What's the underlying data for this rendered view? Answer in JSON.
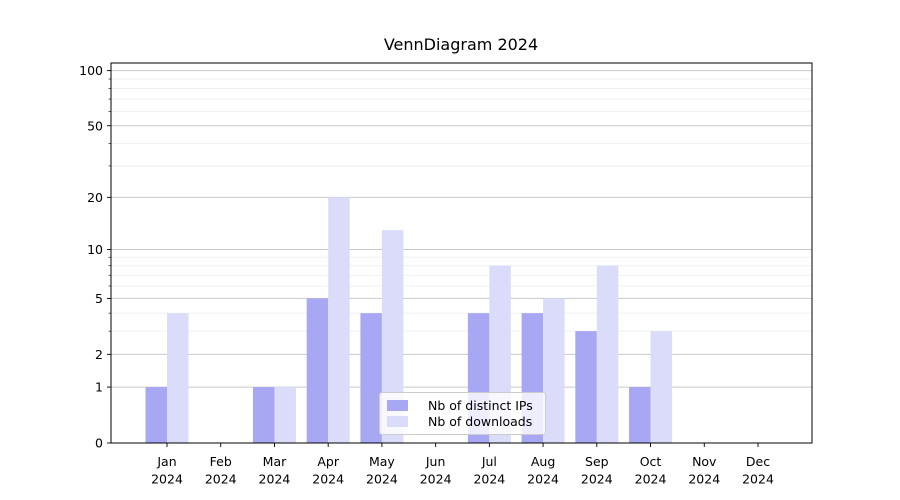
{
  "chart_data": {
    "type": "bar",
    "title": "VennDiagram 2024",
    "year": "2024",
    "categories": [
      "Jan",
      "Feb",
      "Mar",
      "Apr",
      "May",
      "Jun",
      "Jul",
      "Aug",
      "Sep",
      "Oct",
      "Nov",
      "Dec"
    ],
    "series": [
      {
        "name": "Nb of distinct IPs",
        "color": "#a7a7f3",
        "values": [
          1,
          0,
          1,
          5,
          4,
          0,
          4,
          4,
          3,
          1,
          0,
          0
        ]
      },
      {
        "name": "Nb of downloads",
        "color": "#dbdcf9",
        "values": [
          4,
          0,
          1,
          20,
          13,
          0,
          8,
          5,
          8,
          3,
          0,
          0
        ]
      }
    ],
    "y_axis": {
      "scale": "log1p",
      "ticks": [
        0,
        1,
        2,
        5,
        10,
        20,
        50,
        100
      ],
      "minor_ticks": [
        3,
        4,
        6,
        7,
        8,
        9,
        30,
        40,
        60,
        70,
        80,
        90
      ],
      "max": 110
    },
    "xlabel": "",
    "ylabel": "",
    "grid": "horizontal",
    "legend_position": "bottom-center",
    "colors": {
      "background": "#ffffff",
      "axis": "#000000",
      "major_grid": "#c9c9c9",
      "minor_grid": "#ededed",
      "text": "#000000"
    }
  }
}
